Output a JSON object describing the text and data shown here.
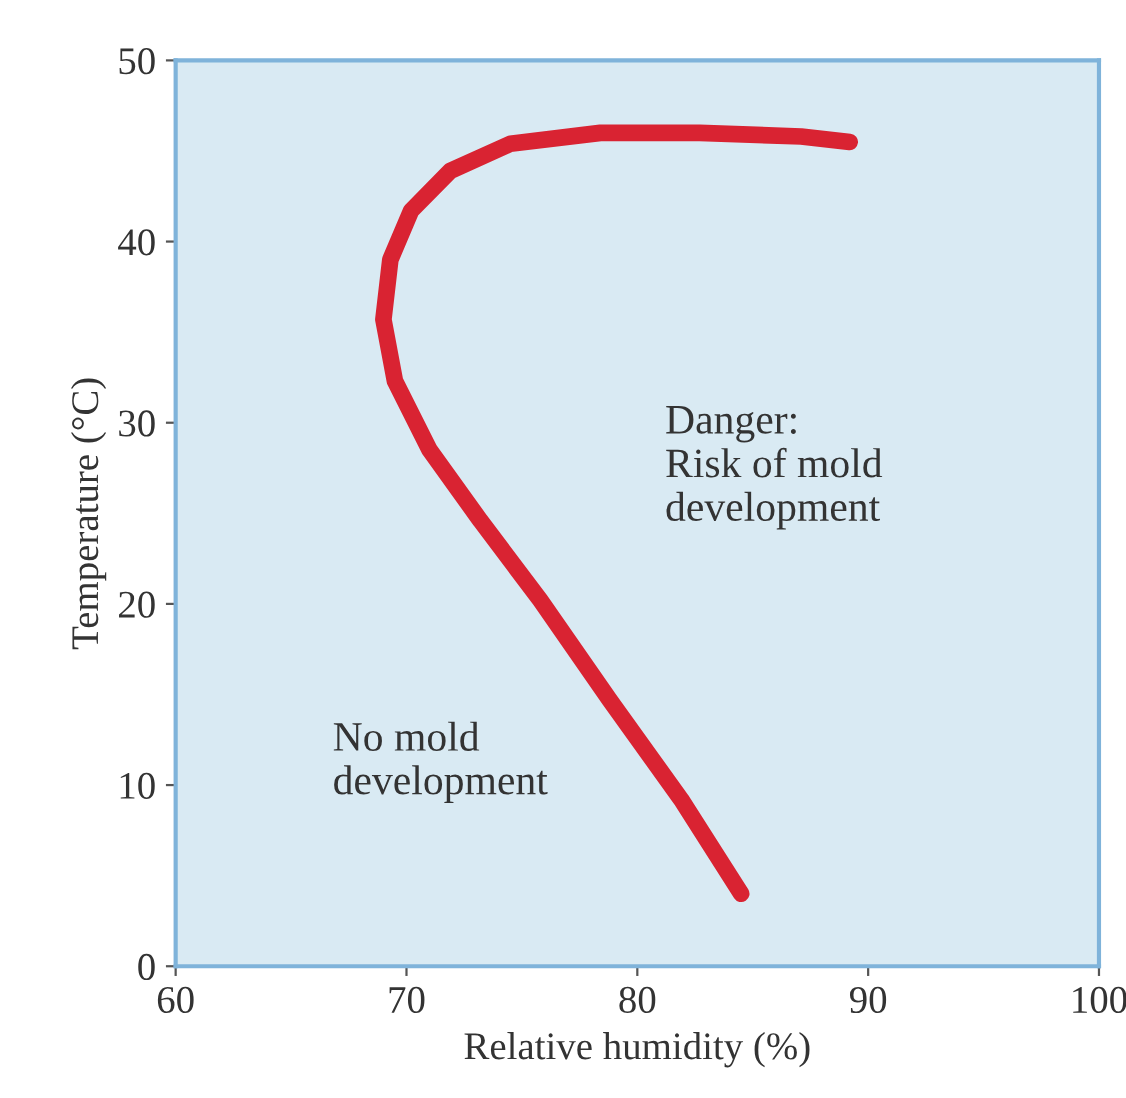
{
  "chart_data": {
    "type": "line",
    "xlabel": "Relative humidity (%)",
    "ylabel": "Temperature (°C)",
    "series": [
      {
        "color": "#d92332",
        "x": [
          84.5,
          81.9,
          78.8,
          75.8,
          73.2,
          71.0,
          69.5,
          69.0,
          69.3,
          70.2,
          71.9,
          74.5,
          78.4,
          82.7,
          87.1,
          89.2
        ],
        "values": [
          4,
          9.2,
          14.7,
          20.2,
          24.6,
          28.5,
          32.3,
          35.7,
          39.0,
          41.7,
          43.9,
          45.4,
          46.0,
          46.0,
          45.8,
          45.5
        ]
      }
    ],
    "xlim": [
      60,
      100
    ],
    "xticks": [
      60,
      70,
      80,
      90,
      100
    ],
    "ylim": [
      0,
      50
    ],
    "yticks": [
      0,
      10,
      20,
      30,
      40,
      50
    ],
    "grid": false,
    "legend": false,
    "marker": "none",
    "line_style": "solid",
    "annotations": [
      "Danger:\nRisk of mold\ndevelopment",
      "No mold\ndevelopment"
    ]
  }
}
